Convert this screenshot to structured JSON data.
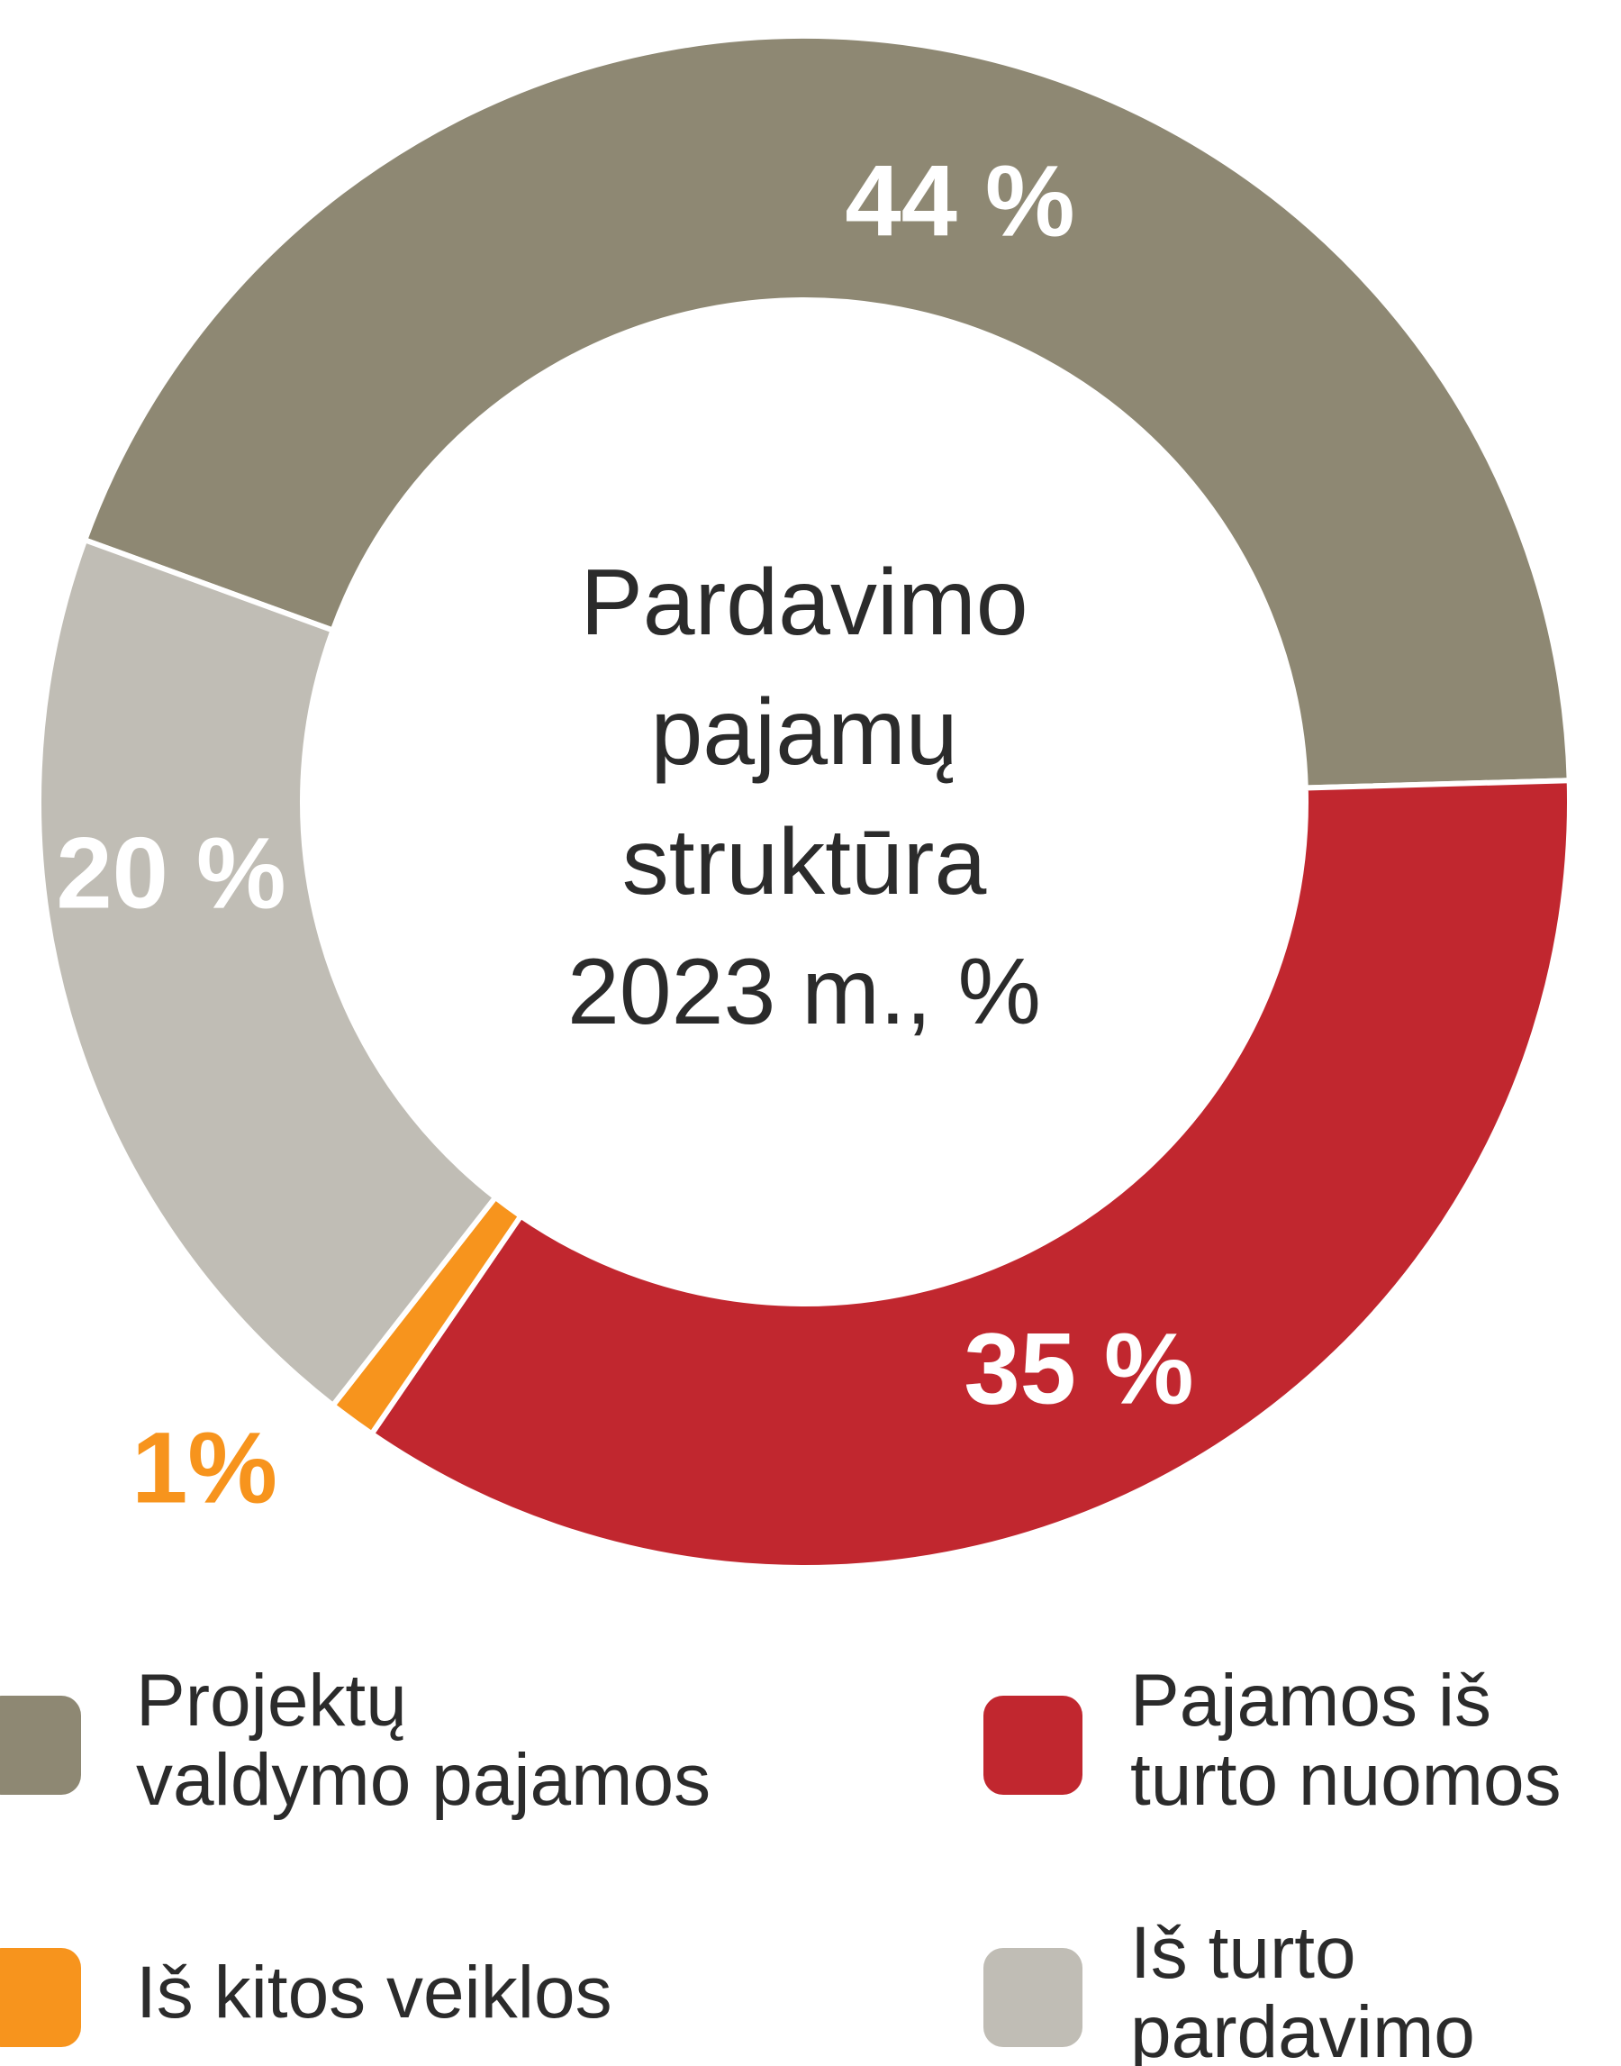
{
  "chart_data": {
    "type": "donut",
    "title": "Pardavimo pajamų struktūra 2023 m., %",
    "categories": [
      "Projektų valdymo pajamos",
      "Pajamos iš turto nuomos",
      "Iš kitos veiklos",
      "Iš turto pardavimo"
    ],
    "values": [
      44,
      35,
      1,
      20
    ],
    "value_labels": [
      "44 %",
      "35 %",
      "1%",
      "20 %"
    ],
    "colors": [
      "#8e8873",
      "#c1272f",
      "#f7941d",
      "#c0bdb5"
    ],
    "legend": "bottom"
  }
}
